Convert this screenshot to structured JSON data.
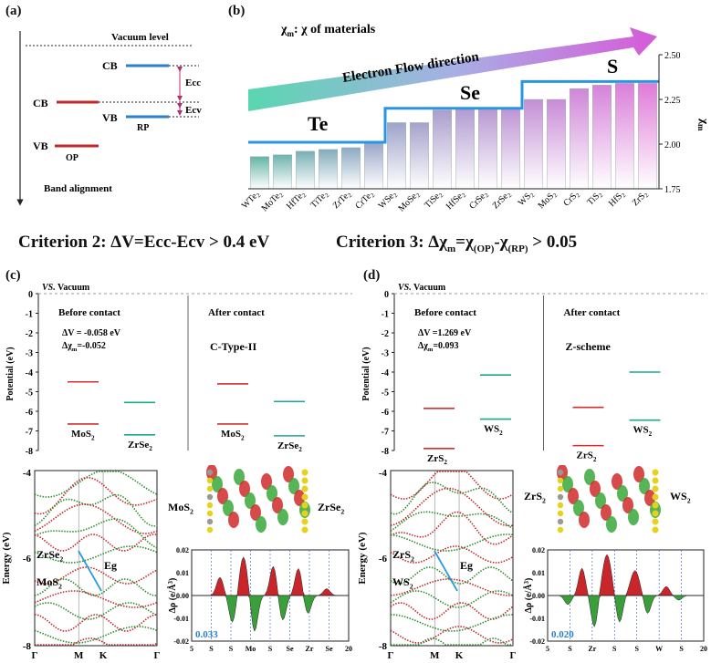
{
  "panel_a": {
    "label": "(a)",
    "vacuum_level": "Vacuum level",
    "cb_rp": "CB",
    "cb_op": "CB",
    "vb_rp": "VB",
    "vb_op": "VB",
    "rp": "RP",
    "op": "OP",
    "ecc": "Ecc",
    "ecv": "Ecv",
    "caption": "Band alignment"
  },
  "panel_b": {
    "label": "(b)",
    "legend_chi": "χ",
    "legend_sub": "m",
    "legend_rest": ": χ of materials",
    "arrow_text": "Electron Flow direction",
    "group_te": "Te",
    "group_se": "Se",
    "group_s": "S",
    "y_label_chi": "χ",
    "y_label_sub": "m",
    "chart_data": {
      "type": "bar",
      "ylim": [
        1.75,
        2.5
      ],
      "yticks": [
        "1.75",
        "2.00",
        "2.25",
        "2.50"
      ],
      "categories": [
        "WTe2",
        "MoTe2",
        "HfTe2",
        "TiTe2",
        "ZrTe2",
        "CrTe2",
        "WSe2",
        "MoSe2",
        "TiSe2",
        "HfSe2",
        "CrSe2",
        "ZrSe2",
        "WS2",
        "MoS2",
        "CrS2",
        "TiS2",
        "HfS2",
        "ZrS2"
      ],
      "category_labels": [
        [
          "WTe",
          "2"
        ],
        [
          "MoTe",
          "2"
        ],
        [
          "HfTe",
          "2"
        ],
        [
          "TiTe",
          "2"
        ],
        [
          "ZrTe",
          "2"
        ],
        [
          "CrTe",
          "2"
        ],
        [
          "WSe",
          "2"
        ],
        [
          "MoSe",
          "2"
        ],
        [
          "TiSe",
          "2"
        ],
        [
          "HfSe",
          "2"
        ],
        [
          "CrSe",
          "2"
        ],
        [
          "ZrSe",
          "2"
        ],
        [
          "WS",
          "2"
        ],
        [
          "MoS",
          "2"
        ],
        [
          "CrS",
          "2"
        ],
        [
          "TiS",
          "2"
        ],
        [
          "HfS",
          "2"
        ],
        [
          "ZrS",
          "2"
        ]
      ],
      "values": [
        1.93,
        1.94,
        1.96,
        1.97,
        1.98,
        2.01,
        2.12,
        2.12,
        2.19,
        2.2,
        2.2,
        2.2,
        2.25,
        2.25,
        2.31,
        2.33,
        2.34,
        2.34
      ],
      "step_levels": {
        "Te": 2.01,
        "Se": 2.2,
        "S": 2.35
      }
    }
  },
  "criterion2": {
    "text": "Criterion 2: ΔV=Ecc-Ecv > 0.4 eV"
  },
  "criterion3": {
    "a": "Criterion 3:  Δχ",
    "b": "m",
    "c": "=χ",
    "d": "(OP)",
    "e": "-χ",
    "f": "(RP)",
    "g": " > 0.05"
  },
  "panel_c": {
    "label": "(c)",
    "vs": "VS.",
    "vacuum": " Vacuum",
    "y_axis": "Potential (eV)",
    "yticks": [
      "0",
      "-1",
      "-2",
      "-3",
      "-4",
      "-5",
      "-6",
      "-7",
      "-8"
    ],
    "before": "Before contact",
    "after": "After contact",
    "dv": "ΔV = -0.058 eV",
    "dchi_a": "Δχ",
    "dchi_b": "m",
    "dchi_c": "=-0.052",
    "type": "C-Type-II",
    "mat1": "MoS",
    "mat1_sub": "2",
    "mat2": "ZrSe",
    "mat2_sub": "2",
    "levels_before": {
      "MoS2_CB": -4.5,
      "MoS2_VB": -6.65,
      "ZrSe2_CB": -5.55,
      "ZrSe2_VB": -7.2
    },
    "levels_after": {
      "MoS2_CB": -4.6,
      "MoS2_VB": -6.65,
      "ZrSe2_CB": -5.5,
      "ZrSe2_VB": -7.25
    },
    "band": {
      "y_label": "Energy (eV)",
      "yticks": [
        "-4",
        "-6",
        "-8"
      ],
      "kpoints": [
        "Γ",
        "M",
        "K",
        "Γ"
      ],
      "label1": "ZrSe",
      "label1_sub": "2",
      "label2": "MoS",
      "label2_sub": "2",
      "eg": "Eg"
    },
    "density": {
      "y_label_a": "Δρ (e/Å",
      "y_label_b": "3",
      "y_label_c": ")",
      "yticks": [
        "0.02",
        "0.01",
        "0.00",
        "-0.01",
        "-0.02"
      ],
      "xticks": [
        "5",
        "S",
        "S",
        "Mo",
        "S",
        "Se",
        "Zr",
        "Se",
        "20"
      ],
      "value": "0.033"
    },
    "struct_left": "MoS",
    "struct_left_sub": "2",
    "struct_right": "ZrSe",
    "struct_right_sub": "2"
  },
  "panel_d": {
    "label": "(d)",
    "vs": "VS.",
    "vacuum": " Vacuum",
    "y_axis": "Potential (eV)",
    "yticks": [
      "0",
      "-1",
      "-2",
      "-3",
      "-4",
      "-5",
      "-6",
      "-7",
      "-8"
    ],
    "before": "Before contact",
    "after": "After contact",
    "dv": "ΔV =1.269 eV",
    "dchi_a": "Δχ",
    "dchi_b": "m",
    "dchi_c": "=0.093",
    "type": "Z-scheme",
    "mat1": "ZrS",
    "mat1_sub": "2",
    "mat2": "WS",
    "mat2_sub": "2",
    "levels_before": {
      "ZrS2_CB": -5.85,
      "ZrS2_VB": -7.9,
      "WS2_CB": -4.15,
      "WS2_VB": -6.4
    },
    "levels_after": {
      "ZrS2_CB": -5.8,
      "ZrS2_VB": -7.75,
      "WS2_CB": -4.0,
      "WS2_VB": -6.45
    },
    "band": {
      "y_label": "Energy (eV)",
      "yticks": [
        "-4",
        "-6",
        "-8"
      ],
      "kpoints": [
        "Γ",
        "M",
        "K",
        "Γ"
      ],
      "label1": "ZrS",
      "label1_sub": "2",
      "label2": "WS",
      "label2_sub": "2",
      "eg": "Eg"
    },
    "density": {
      "y_label_a": "Δρ (e/Å",
      "y_label_b": "3",
      "y_label_c": ")",
      "yticks": [
        "0.02",
        "0.01",
        "0.00",
        "-0.01",
        "-0.02"
      ],
      "xticks": [
        "5",
        "S",
        "Zr",
        "S",
        "S",
        "W",
        "S",
        "20"
      ],
      "value": "0.020"
    },
    "struct_left": "ZrS",
    "struct_left_sub": "2",
    "struct_right": "WS",
    "struct_right_sub": "2"
  }
}
